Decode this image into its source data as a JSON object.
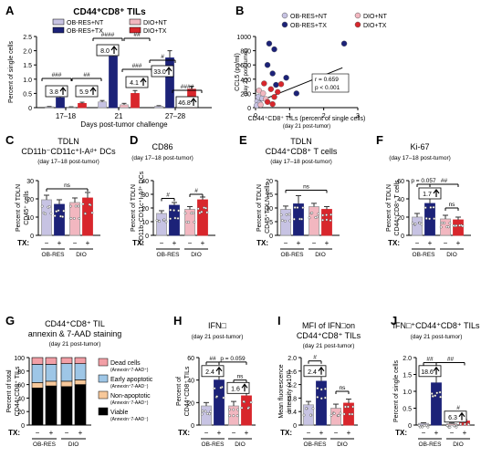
{
  "colors": {
    "ob_nt": "#c7c3e3",
    "ob_tx": "#1c2278",
    "dio_nt": "#f2b7c0",
    "dio_tx": "#d8262c",
    "dead": "#f29fa6",
    "early": "#9ec6e6",
    "nonapo": "#f7c89a",
    "viable": "#000000",
    "errbar": "#333333"
  },
  "panelA": {
    "letter": "A",
    "title": "CD44⁺CD8⁺ TILs",
    "ylabel": "Percent of single cells",
    "xlabel": "Days post-tumor challenge",
    "legend": [
      "OB-RES+NT",
      "OB-RES+TX",
      "DIO+NT",
      "DIO+TX"
    ],
    "chart_data": {
      "type": "bar",
      "categories": [
        "17–18",
        "21",
        "27–28"
      ],
      "ylim": [
        0,
        2.5
      ],
      "yticks": [
        0,
        0.5,
        1.0,
        1.5,
        2.0,
        2.5
      ],
      "yticklabels": [
        "0",
        "0.5",
        "1.0",
        "1.5",
        "2.0",
        "2.5"
      ],
      "series": [
        {
          "name": "OB-RES+NT",
          "values": [
            0.03,
            0.2,
            0.05
          ],
          "err": [
            0.01,
            0.05,
            0.02
          ]
        },
        {
          "name": "OB-RES+TX",
          "values": [
            0.35,
            1.8,
            1.75
          ],
          "err": [
            0.08,
            0.3,
            0.25
          ]
        },
        {
          "name": "DIO+NT",
          "values": [
            0.02,
            0.1,
            0.04
          ],
          "err": [
            0.01,
            0.05,
            0.02
          ]
        },
        {
          "name": "DIO+TX",
          "values": [
            0.15,
            0.5,
            0.65
          ],
          "err": [
            0.04,
            0.1,
            0.1
          ]
        }
      ],
      "sig": [
        {
          "g": 0,
          "label": "###",
          "fold": "3.8"
        },
        {
          "g": 0,
          "label": "##",
          "fold": "5.9"
        },
        {
          "g": 1,
          "label": "####",
          "fold": "8.0"
        },
        {
          "g": 1,
          "label": "##",
          "fold": ""
        },
        {
          "g": 1,
          "label": "###",
          "fold": "4.1"
        },
        {
          "g": 2,
          "label": "#",
          "fold": "33.0"
        },
        {
          "g": 2,
          "label": "####",
          "fold": "46.8"
        }
      ]
    }
  },
  "panelB": {
    "letter": "B",
    "ylabel": "CCL5 (pg/ml)",
    "ylabel2": "(day 21 post-tumor)",
    "xlabel": "CD44⁺CD8⁺ TILs (percent of single cells)",
    "xlabel2": "(day 21 post-tumor)",
    "legend": [
      "OB-RES+NT",
      "DIO+NT",
      "OB-RES+TX",
      "DIO+TX"
    ],
    "stat1": "r = 0.659",
    "stat2": "p < 0.001",
    "chart_data": {
      "type": "scatter",
      "xlim": [
        0,
        3
      ],
      "ylim": [
        0,
        1000
      ],
      "xticks": [
        0,
        1,
        2,
        3
      ],
      "yticks": [
        0,
        200,
        400,
        600,
        800,
        1000
      ],
      "fit": {
        "x0": 0.0,
        "y0": 70,
        "x1": 2.55,
        "y1": 560
      },
      "points": [
        {
          "g": 0,
          "x": 0.05,
          "y": 90
        },
        {
          "g": 0,
          "x": 0.08,
          "y": 150
        },
        {
          "g": 0,
          "x": 0.12,
          "y": 60
        },
        {
          "g": 0,
          "x": 0.2,
          "y": 130
        },
        {
          "g": 0,
          "x": 0.03,
          "y": 30
        },
        {
          "g": 1,
          "x": 0.4,
          "y": 900
        },
        {
          "g": 1,
          "x": 0.55,
          "y": 820
        },
        {
          "g": 1,
          "x": 0.35,
          "y": 600
        },
        {
          "g": 1,
          "x": 0.5,
          "y": 480
        },
        {
          "g": 1,
          "x": 0.9,
          "y": 420
        },
        {
          "g": 1,
          "x": 1.2,
          "y": 200
        },
        {
          "g": 1,
          "x": 0.6,
          "y": 320
        },
        {
          "g": 1,
          "x": 2.6,
          "y": 900
        },
        {
          "g": 2,
          "x": 0.1,
          "y": 240
        },
        {
          "g": 2,
          "x": 0.22,
          "y": 200
        },
        {
          "g": 2,
          "x": 0.3,
          "y": 120
        },
        {
          "g": 2,
          "x": 0.15,
          "y": 40
        },
        {
          "g": 3,
          "x": 0.25,
          "y": 340
        },
        {
          "g": 3,
          "x": 0.45,
          "y": 260
        },
        {
          "g": 3,
          "x": 0.55,
          "y": 150
        },
        {
          "g": 3,
          "x": 0.65,
          "y": 220
        },
        {
          "g": 3,
          "x": 0.35,
          "y": 80
        },
        {
          "g": 3,
          "x": 0.75,
          "y": 330
        },
        {
          "g": 3,
          "x": 0.5,
          "y": 50
        }
      ]
    }
  },
  "groupLabels": {
    "tx": "TX:",
    "minus": "−",
    "plus": "+",
    "ob": "OB-RES",
    "dio": "DIO"
  },
  "panelC": {
    "letter": "C",
    "t1": "TDLN",
    "t2": "CD11b⁻CD11c⁺I-Aᵈ⁺ DCs",
    "t3": "(day 17–18 post-tumor)",
    "ylabel": "Percent of TDLN",
    "ylabel2": "CD45⁺ cells",
    "chart_data": {
      "type": "bar",
      "ylim": [
        0,
        30
      ],
      "yticks": [
        0,
        10,
        20,
        30
      ],
      "values": [
        19.5,
        17.0,
        18.0,
        20.5
      ],
      "err": [
        2.5,
        2.5,
        2.5,
        3.0
      ],
      "sig": [
        {
          "a": 0,
          "b": 3,
          "label": "ns",
          "y": 25.5
        }
      ]
    }
  },
  "panelD": {
    "letter": "D",
    "t1": "CD86",
    "t3": "(day 17–18 post-tumor)",
    "ylabel": "Percent of TDLN",
    "ylabel2": "CD11b⁻CD11c⁺I-Aᵈ⁺ DCs",
    "chart_data": {
      "type": "bar",
      "ylim": [
        0,
        40
      ],
      "yticks": [
        0,
        10,
        20,
        30,
        40
      ],
      "values": [
        16.0,
        22.0,
        19.0,
        26.0
      ],
      "err": [
        2.0,
        2.0,
        2.0,
        2.0
      ],
      "sig": [
        {
          "a": 0,
          "b": 1,
          "label": "#",
          "y": 27
        },
        {
          "a": 2,
          "b": 3,
          "label": "#",
          "y": 30
        }
      ]
    }
  },
  "panelE": {
    "letter": "E",
    "t1": "TDLN",
    "t2": "CD44⁺CD8⁺ T cells",
    "t3": "(day 17–18 post-tumor)",
    "ylabel": "Percent of TDLN",
    "ylabel2": "CD45⁺TDLN cells",
    "chart_data": {
      "type": "bar",
      "ylim": [
        0,
        20
      ],
      "yticks": [
        0,
        5,
        10,
        15,
        20
      ],
      "values": [
        9.5,
        11.5,
        10.5,
        9.5
      ],
      "err": [
        1.2,
        3.0,
        1.2,
        1.0
      ],
      "sig": [
        {
          "a": 0,
          "b": 3,
          "label": "ns",
          "y": 16.5
        }
      ]
    }
  },
  "panelF": {
    "letter": "F",
    "t1": "Ki-67",
    "t3": "(day 17–18 post-tumor)",
    "ylabel": "Percent of TDLN",
    "ylabel2": "CD44⁺CD8⁺ T cells",
    "chart_data": {
      "type": "bar",
      "ylim": [
        0,
        60
      ],
      "yticks": [
        0,
        20,
        40,
        60
      ],
      "values": [
        20.0,
        35.0,
        18.0,
        17.0
      ],
      "err": [
        4.0,
        8.0,
        4.0,
        3.0
      ],
      "sig": [
        {
          "a": 0,
          "b": 1,
          "label": "p = 0.057",
          "y": 56
        },
        {
          "a": 1,
          "b": 3,
          "label": "##",
          "y": 56
        },
        {
          "a": 2,
          "b": 3,
          "label": "ns",
          "y": 30
        }
      ],
      "fold": {
        "label": "1.7",
        "y": 46
      }
    }
  },
  "panelG": {
    "letter": "G",
    "t1": "CD44⁺CD8⁺ TIL",
    "t2": "annexin & 7-AAD staining",
    "t3": "(day 21 post-tumor)",
    "ylabel": "Percent of total",
    "ylabel2": "CD44⁺CD8⁺ TILs",
    "legend": [
      {
        "name": "Dead cells",
        "sub": "(Annexin⁺7-AAD⁺)"
      },
      {
        "name": "Early apoptotic",
        "sub": "(Annexin⁺7-AAD⁻)"
      },
      {
        "name": "Non-apoptotic",
        "sub": "(Annexin⁻7-AAD⁺)"
      },
      {
        "name": "Viable",
        "sub": "(Annexin⁻7-AAD⁻)"
      }
    ],
    "chart_data": {
      "type": "bar",
      "ylim": [
        0,
        100
      ],
      "yticks": [
        0,
        20,
        40,
        60,
        80,
        100
      ],
      "stacks": [
        {
          "viable": 55,
          "nonapo": 8,
          "early": 27,
          "dead": 10
        },
        {
          "viable": 58,
          "nonapo": 7,
          "early": 25,
          "dead": 10
        },
        {
          "viable": 57,
          "nonapo": 8,
          "early": 26,
          "dead": 9
        },
        {
          "viable": 60,
          "nonapo": 7,
          "early": 24,
          "dead": 9
        }
      ]
    }
  },
  "panelH": {
    "letter": "H",
    "t1": "IFN□",
    "t3": "(day 21 post-tumor)",
    "ylabel": "Percent of",
    "ylabel2": "CD44⁺CD8⁺ TILs",
    "chart_data": {
      "type": "bar",
      "ylim": [
        0,
        60
      ],
      "yticks": [
        0,
        20,
        40,
        60
      ],
      "values": [
        17.0,
        40.0,
        17.0,
        26.0
      ],
      "err": [
        3.0,
        4.0,
        4.0,
        3.0
      ],
      "sig": [
        {
          "a": 0,
          "b": 1,
          "label": "##",
          "y": 56
        },
        {
          "a": 1,
          "b": 3,
          "label": "p = 0.059",
          "y": 56
        },
        {
          "a": 2,
          "b": 3,
          "label": "ns",
          "y": 40
        }
      ],
      "folds": [
        {
          "label": "2.4",
          "x": 0.5,
          "y": 48
        },
        {
          "label": "1.6",
          "x": 2.5,
          "y": 33
        }
      ]
    }
  },
  "panelI": {
    "letter": "I",
    "t1": "MFI of IFN□on",
    "t2": "CD44⁺CD8⁺ TILs",
    "t3": "(day 21 post-tumor)",
    "ylabel": "Mean fluorescence",
    "ylabel2": "intensity (x10³)",
    "chart_data": {
      "type": "bar",
      "ylim": [
        0,
        2.0
      ],
      "yticks": [
        0,
        0.4,
        0.8,
        1.2,
        1.6,
        2.0
      ],
      "yticklabels": [
        "0",
        "0.4",
        "0.8",
        "1.2",
        "1.6",
        "2.0"
      ],
      "values": [
        0.6,
        1.3,
        0.5,
        0.65
      ],
      "err": [
        0.1,
        0.25,
        0.12,
        0.12
      ],
      "sig": [
        {
          "a": 0,
          "b": 1,
          "label": "#",
          "y": 1.9
        },
        {
          "a": 2,
          "b": 3,
          "label": "ns",
          "y": 1.0
        }
      ],
      "folds": [
        {
          "label": "2.4",
          "x": 0.5,
          "y": 1.6
        }
      ]
    }
  },
  "panelJ": {
    "letter": "J",
    "t1": "IFN□⁺CD44⁺CD8⁺ TILs",
    "t3": "(day 21 post-tumor)",
    "ylabel": "Percent of single cells",
    "chart_data": {
      "type": "bar",
      "ylim": [
        0,
        2.0
      ],
      "yticks": [
        0,
        0.5,
        1.0,
        1.5,
        2.0
      ],
      "yticklabels": [
        "0",
        "0.5",
        "1.0",
        "1.5",
        "2.0"
      ],
      "values": [
        0.05,
        1.25,
        0.04,
        0.12
      ],
      "err": [
        0.02,
        0.4,
        0.02,
        0.04
      ],
      "sig": [
        {
          "a": 0,
          "b": 1,
          "label": "##",
          "y": 1.85
        },
        {
          "a": 1,
          "b": 3,
          "label": "##",
          "y": 1.85
        },
        {
          "a": 2,
          "b": 3,
          "label": "#",
          "y": 0.4
        }
      ],
      "folds": [
        {
          "label": "18.6",
          "x": 0.5,
          "y": 1.6
        },
        {
          "label": "6.3",
          "x": 2.5,
          "y": 0.25
        }
      ]
    }
  }
}
